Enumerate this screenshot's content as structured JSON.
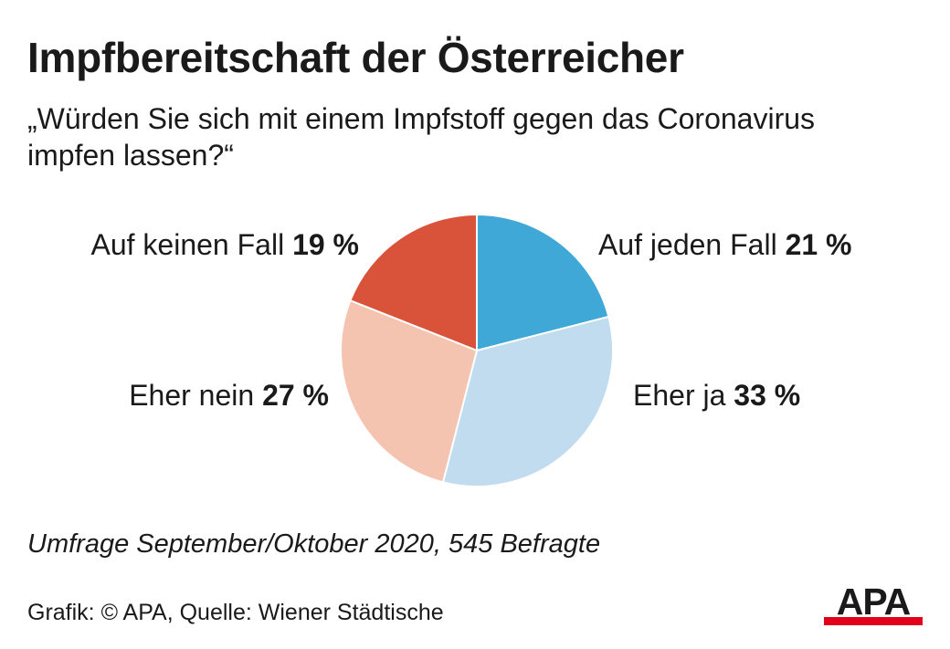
{
  "header": {
    "title": "Impfbereitschaft der Österreicher",
    "subtitle": "„Würden Sie sich mit einem Impfstoff gegen das Coronavirus impfen lassen?“"
  },
  "chart_data": {
    "type": "pie",
    "title": "Impfbereitschaft der Österreicher",
    "subtitle": "„Würden Sie sich mit einem Impfstoff gegen das Coronavirus impfen lassen?“",
    "unit": "%",
    "slices": [
      {
        "label": "Auf jeden Fall",
        "value": 21,
        "value_text": "21 %",
        "color": "#3fa8d6"
      },
      {
        "label": "Eher ja",
        "value": 33,
        "value_text": "33 %",
        "color": "#c0dcee"
      },
      {
        "label": "Eher nein",
        "value": 27,
        "value_text": "27 %",
        "color": "#f4c4b0"
      },
      {
        "label": "Auf keinen Fall",
        "value": 19,
        "value_text": "19 %",
        "color": "#d9533a"
      }
    ],
    "start": "12 o'clock, clockwise",
    "legend": "none (direct labels)"
  },
  "footer": {
    "note": "Umfrage September/Oktober 2020, 545 Befragte",
    "source": "Grafik: © APA, Quelle: Wiener Städtische",
    "logo_text": "APA",
    "logo_colors": {
      "text": "#1a1a1a",
      "bar": "#e2001a"
    }
  }
}
